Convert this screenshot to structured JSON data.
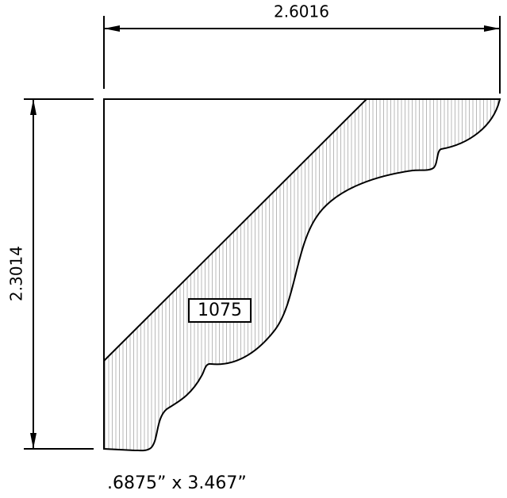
{
  "dimensions": {
    "width": "2.6016",
    "height": "2.3014"
  },
  "part_number": "1075",
  "caption": ".6875” x 3.467”"
}
